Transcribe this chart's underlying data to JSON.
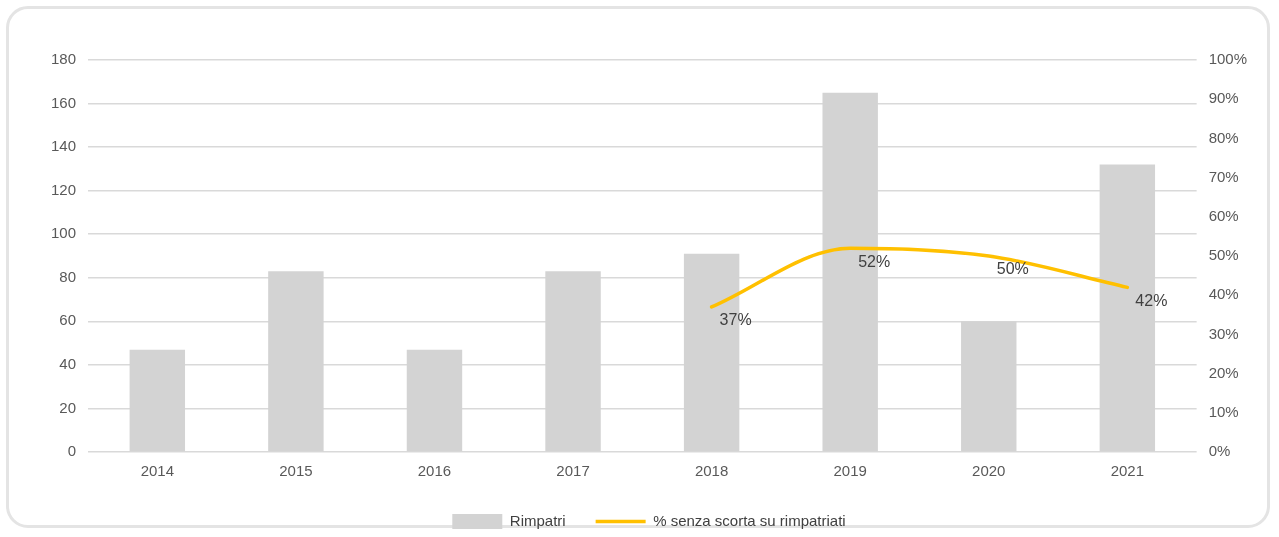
{
  "chart_data": {
    "type": "bar",
    "categories": [
      "2014",
      "2015",
      "2016",
      "2017",
      "2018",
      "2019",
      "2020",
      "2021"
    ],
    "series": [
      {
        "name": "Rimpatri",
        "color": "#d3d3d3",
        "values": [
          47,
          83,
          47,
          83,
          91,
          165,
          60,
          132
        ]
      },
      {
        "name": "% senza scorta su rimpatriati",
        "type": "line",
        "axis": "y2",
        "color": "#ffc000",
        "values": [
          null,
          null,
          null,
          null,
          37,
          52,
          50,
          42
        ],
        "value_labels": [
          null,
          null,
          null,
          null,
          "37%",
          "52%",
          "50%",
          "42%"
        ]
      }
    ],
    "ylim": [
      0,
      180
    ],
    "yticks": [
      0,
      20,
      40,
      60,
      80,
      100,
      120,
      140,
      160,
      180
    ],
    "y2lim": [
      0,
      100
    ],
    "y2ticks": [
      {
        "value": 0,
        "label": "0%"
      },
      {
        "value": 10,
        "label": "10%"
      },
      {
        "value": 20,
        "label": "20%"
      },
      {
        "value": 30,
        "label": "30%"
      },
      {
        "value": 40,
        "label": "40%"
      },
      {
        "value": 50,
        "label": "50%"
      },
      {
        "value": 60,
        "label": "60%"
      },
      {
        "value": 70,
        "label": "70%"
      },
      {
        "value": 80,
        "label": "80%"
      },
      {
        "value": 90,
        "label": "90%"
      },
      {
        "value": 100,
        "label": "100%"
      }
    ],
    "grid": "y",
    "legend": "bottom",
    "marker": "none"
  }
}
